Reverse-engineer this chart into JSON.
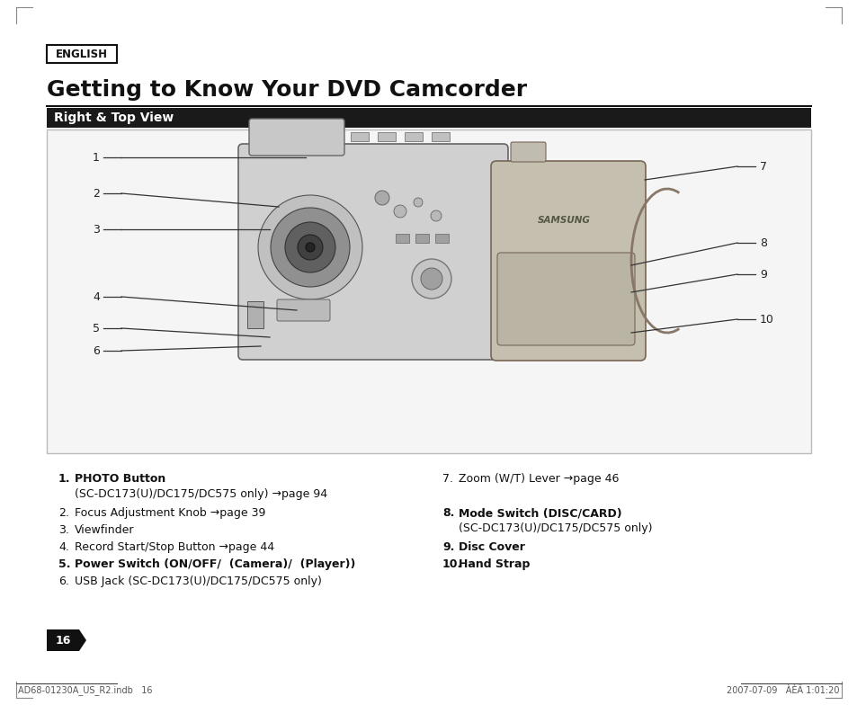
{
  "page_bg": "#ffffff",
  "english_label": "ENGLISH",
  "title": "Getting to Know Your DVD Camcorder",
  "section_header": "Right & Top View",
  "section_header_bg": "#1a1a1a",
  "section_header_color": "#ffffff",
  "page_number": "16",
  "footer_left": "AD68-01230A_US_R2.indb   16",
  "footer_right": "2007-07-09   ÀÈÄ 1:01:20",
  "line_color": "#333333",
  "corner_color": "#888888"
}
